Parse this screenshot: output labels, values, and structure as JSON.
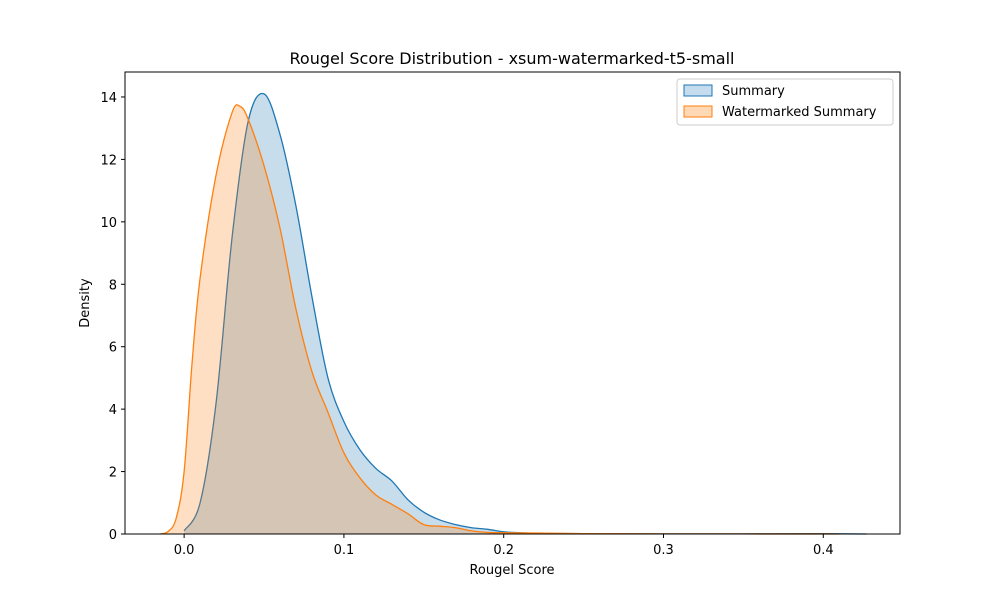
{
  "chart_data": {
    "type": "area",
    "title": "Rougel Score Distribution - xsum-watermarked-t5-small",
    "xlabel": "Rougel Score",
    "ylabel": "Density",
    "xlim": [
      -0.037,
      0.448
    ],
    "ylim": [
      0,
      14.8
    ],
    "xticks": [
      0.0,
      0.1,
      0.2,
      0.3,
      0.4
    ],
    "xtick_labels": [
      "0.0",
      "0.1",
      "0.2",
      "0.3",
      "0.4"
    ],
    "yticks": [
      0,
      2,
      4,
      6,
      8,
      10,
      12,
      14
    ],
    "ytick_labels": [
      "0",
      "2",
      "4",
      "6",
      "8",
      "10",
      "12",
      "14"
    ],
    "grid": false,
    "legend_position": "top-right",
    "series": [
      {
        "name": "Summary",
        "color": "#1f77b4",
        "fill": "#c5dbee",
        "x": [
          0.0,
          0.01,
          0.02,
          0.03,
          0.04,
          0.05,
          0.06,
          0.07,
          0.08,
          0.09,
          0.1,
          0.11,
          0.12,
          0.13,
          0.14,
          0.15,
          0.16,
          0.17,
          0.18,
          0.19,
          0.2,
          0.21,
          0.22,
          0.25,
          0.3,
          0.35,
          0.4,
          0.427
        ],
        "y": [
          0.1,
          1.0,
          4.2,
          9.5,
          13.2,
          14.1,
          12.8,
          10.5,
          7.6,
          5.0,
          3.6,
          2.7,
          2.1,
          1.7,
          1.1,
          0.7,
          0.45,
          0.3,
          0.2,
          0.15,
          0.07,
          0.04,
          0.02,
          0.01,
          0.005,
          0.005,
          0.01,
          0.0
        ]
      },
      {
        "name": "Watermarked Summary",
        "color": "#ff7f0e",
        "fill": "#ffd8b5",
        "x": [
          -0.015,
          -0.01,
          -0.005,
          0.0,
          0.005,
          0.01,
          0.02,
          0.03,
          0.035,
          0.04,
          0.05,
          0.06,
          0.07,
          0.08,
          0.09,
          0.1,
          0.11,
          0.12,
          0.13,
          0.14,
          0.15,
          0.16,
          0.17,
          0.18,
          0.19,
          0.2,
          0.22,
          0.25,
          0.3,
          0.35,
          0.4,
          0.41
        ],
        "y": [
          0.0,
          0.08,
          0.5,
          2.0,
          5.5,
          8.2,
          11.5,
          13.5,
          13.7,
          13.3,
          11.8,
          9.8,
          7.2,
          5.2,
          3.9,
          2.6,
          1.8,
          1.25,
          0.95,
          0.65,
          0.3,
          0.25,
          0.2,
          0.1,
          0.05,
          0.04,
          0.03,
          0.01,
          0.005,
          0.003,
          0.002,
          0.0
        ]
      }
    ]
  }
}
